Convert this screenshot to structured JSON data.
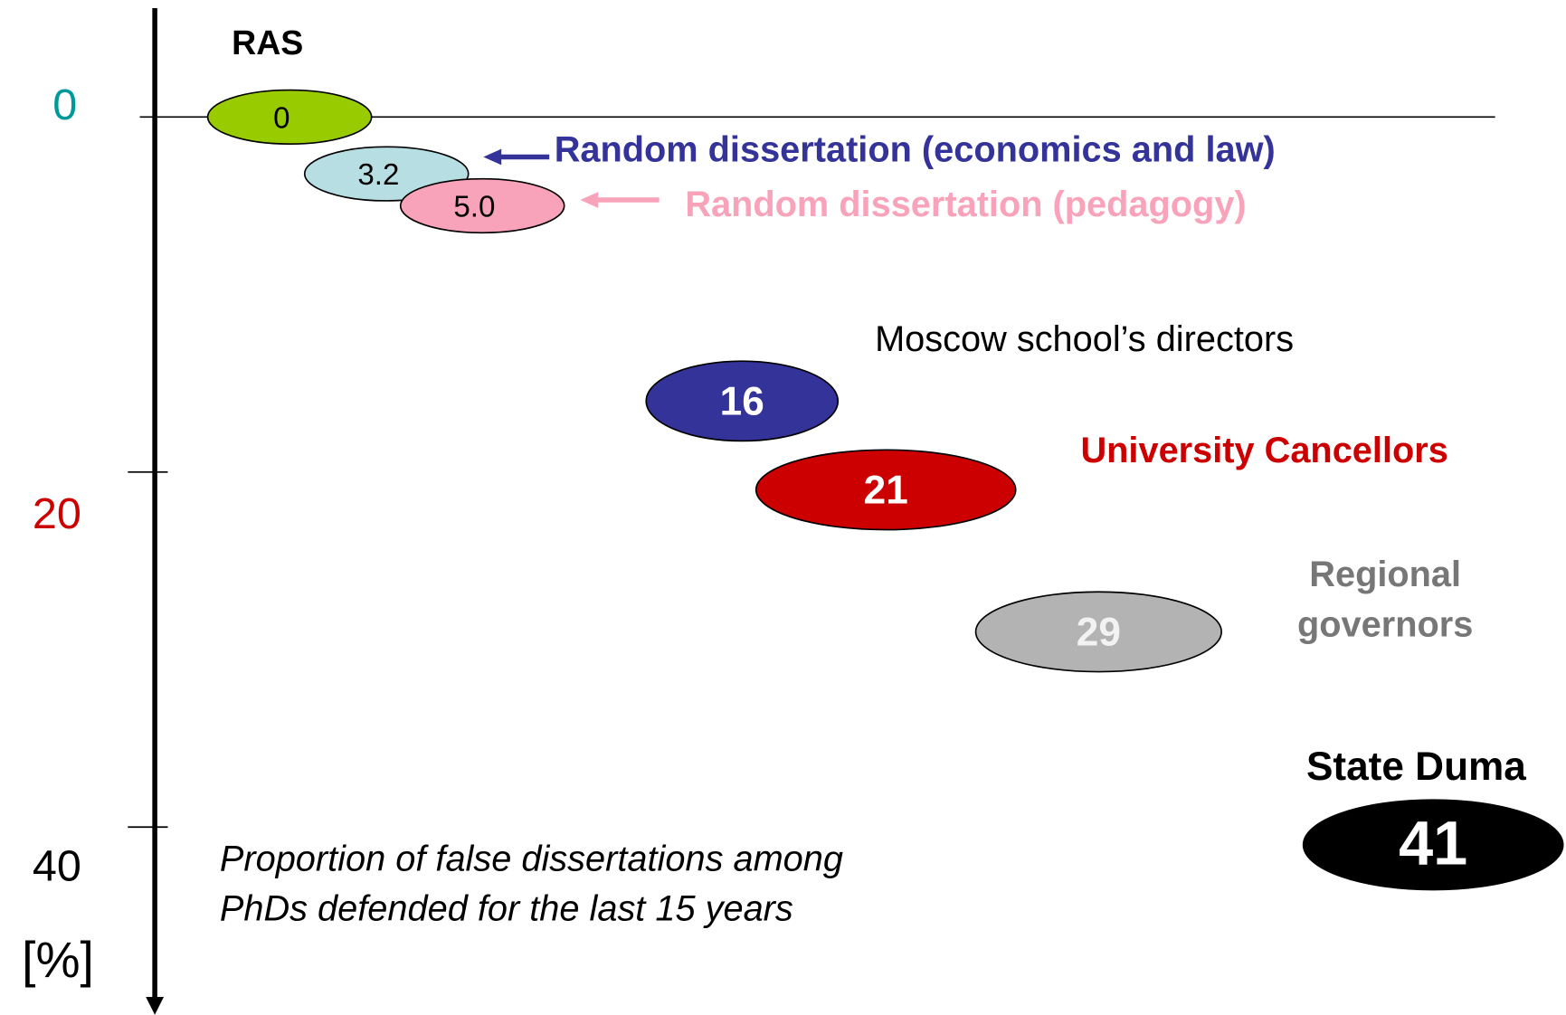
{
  "chart_data": {
    "type": "bubble-ladder",
    "categories": [
      "RAS",
      "Random dissertation (economics and law)",
      "Random dissertation (pedagogy)",
      "Moscow school’s directors",
      "University Cancellors",
      "Regional governors",
      "State Duma"
    ],
    "values": [
      0,
      3.2,
      5.0,
      16,
      21,
      29,
      41
    ],
    "value_labels": [
      "0",
      "3.2",
      "5.0",
      "16",
      "21",
      "29",
      "41"
    ],
    "colors": [
      "#99cc00",
      "#b7dfe3",
      "#f9a3bb",
      "#333399",
      "#cc0000",
      "#b3b3b3",
      "#000000"
    ],
    "label_colors": [
      "#000000",
      "#333399",
      "#f9a3bb",
      "#000000",
      "#cc0000",
      "#777777",
      "#000000"
    ],
    "ylim": [
      0,
      40
    ],
    "yticks": [
      0,
      20,
      40
    ],
    "ytick_colors": [
      "#009999",
      "#cc0000",
      "#000000"
    ],
    "y_label": "[%]",
    "annotation": [
      "Proportion of false dissertations among",
      "PhDs defended for the last 15 years"
    ]
  }
}
